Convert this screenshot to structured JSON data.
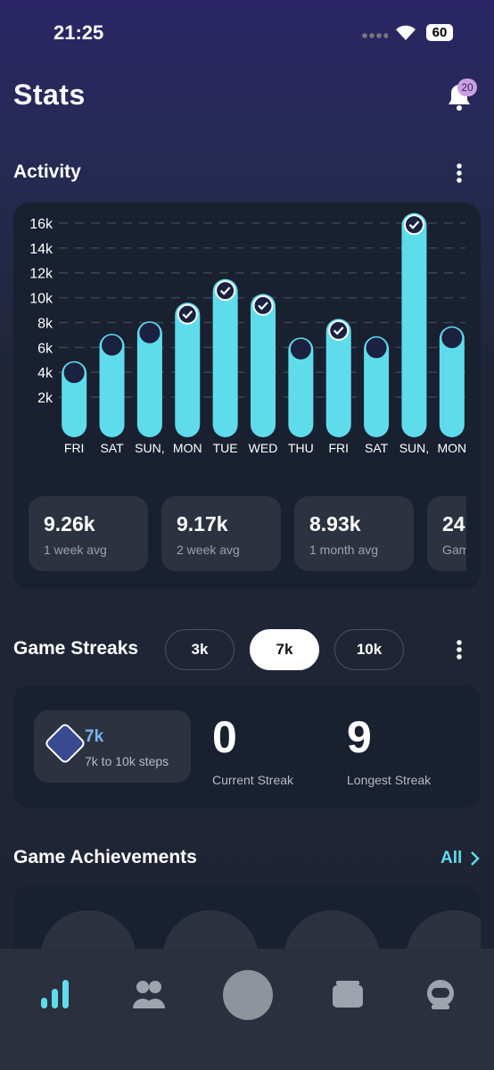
{
  "status": {
    "time": "21:25",
    "battery": "60"
  },
  "header": {
    "title": "Stats",
    "badge": "20"
  },
  "activity": {
    "title": "Activity",
    "chart_data": {
      "type": "bar",
      "categories": [
        "FRI",
        "SAT",
        "SUN,",
        "MON",
        "TUE",
        "WED",
        "THU",
        "FRI",
        "SAT",
        "SUN,",
        "MON"
      ],
      "values": [
        4900,
        7100,
        8100,
        9600,
        11500,
        10300,
        6800,
        8300,
        6900,
        16800,
        7700
      ],
      "goal_met": [
        false,
        false,
        false,
        true,
        true,
        true,
        false,
        true,
        false,
        true,
        false
      ],
      "color": "#5fdcec",
      "ylim": [
        0,
        17000
      ],
      "yticks": [
        {
          "value": 2000,
          "label": "2k"
        },
        {
          "value": 4000,
          "label": "4k"
        },
        {
          "value": 6000,
          "label": "6k"
        },
        {
          "value": 8000,
          "label": "8k"
        },
        {
          "value": 10000,
          "label": "10k"
        },
        {
          "value": 12000,
          "label": "12k"
        },
        {
          "value": 14000,
          "label": "14k"
        },
        {
          "value": 16000,
          "label": "16k"
        }
      ],
      "grid": true
    },
    "cards": [
      {
        "value": "9.26k",
        "label": "1 week avg"
      },
      {
        "value": "9.17k",
        "label": "2 week avg"
      },
      {
        "value": "8.93k",
        "label": "1 month avg"
      },
      {
        "value": "24",
        "label": "Gam"
      }
    ]
  },
  "streaks": {
    "title": "Game Streaks",
    "options": [
      "3k",
      "7k",
      "10k"
    ],
    "badge": "7k",
    "badge_sub": "7k to 10k steps",
    "current": "0",
    "current_label": "Current Streak",
    "longest": "9",
    "longest_label": "Longest Streak"
  },
  "achievements": {
    "title": "Game Achievements",
    "link": "All"
  }
}
